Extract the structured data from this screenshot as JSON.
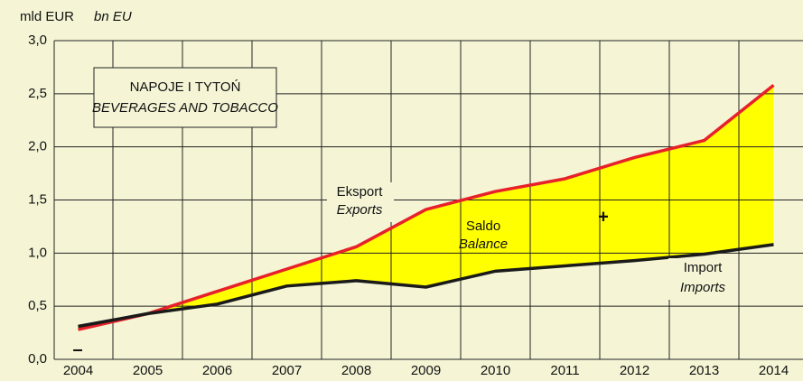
{
  "chart_data": {
    "type": "line",
    "title": "NAPOJE I TYTOŃ",
    "subtitle": "BEVERAGES AND TOBACCO",
    "ylabel": "mld EUR",
    "ylabel_en": "bn EU",
    "categories": [
      "2004",
      "2005",
      "2006",
      "2007",
      "2008",
      "2009",
      "2010",
      "2011",
      "2012",
      "2013",
      "2014"
    ],
    "series": [
      {
        "name": "Eksport",
        "name_en": "Exports",
        "color": "#e8202a",
        "values": [
          0.28,
          0.43,
          0.64,
          0.85,
          1.06,
          1.41,
          1.58,
          1.7,
          1.9,
          2.06,
          2.58
        ]
      },
      {
        "name": "Import",
        "name_en": "Imports",
        "color": "#1a1a1a",
        "values": [
          0.31,
          0.43,
          0.52,
          0.69,
          0.74,
          0.68,
          0.83,
          0.88,
          0.93,
          0.99,
          1.08
        ]
      }
    ],
    "fill_color": "#ffff00",
    "annotations": [
      "Saldo",
      "Balance",
      "+",
      "–"
    ],
    "ylim": [
      0,
      3
    ],
    "yticks": [
      {
        "value": 0,
        "label": "0,0"
      },
      {
        "value": 0.5,
        "label": "0,5"
      },
      {
        "value": 1,
        "label": "1,0"
      },
      {
        "value": 1.5,
        "label": "1,5"
      },
      {
        "value": 2,
        "label": "2,0"
      },
      {
        "value": 2.5,
        "label": "2,5"
      },
      {
        "value": 3,
        "label": "3,0"
      }
    ],
    "grid": true
  }
}
